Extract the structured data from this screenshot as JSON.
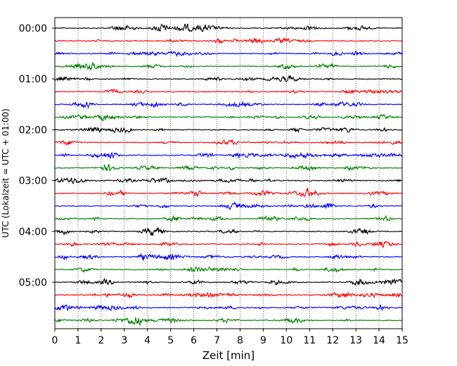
{
  "chart_data": {
    "type": "line",
    "title": "",
    "xlabel": "Zeit  [min]",
    "ylabel": "UTC (Lokalzeit = UTC + 01:00)",
    "xlim": [
      0,
      15
    ],
    "x_ticks": [
      "0",
      "1",
      "2",
      "3",
      "4",
      "5",
      "6",
      "7",
      "8",
      "9",
      "10",
      "11",
      "12",
      "13",
      "14",
      "15"
    ],
    "y_tick_labels": [
      "00:00",
      "01:00",
      "02:00",
      "03:00",
      "04:00",
      "05:00"
    ],
    "grid": "vertical dotted lines at each minute",
    "trace_interval_minutes": 15,
    "trace_start_times": [
      "00:00",
      "00:15",
      "00:30",
      "00:45",
      "01:00",
      "01:15",
      "01:30",
      "01:45",
      "02:00",
      "02:15",
      "02:30",
      "02:45",
      "03:00",
      "03:15",
      "03:30",
      "03:45",
      "04:00",
      "04:15",
      "04:30",
      "04:45",
      "05:00",
      "05:15",
      "05:30",
      "05:45"
    ],
    "trace_colors": [
      "#000000",
      "#ff0000",
      "#0000ff",
      "#008000"
    ],
    "series_description": "24 seismogram traces, each 15 minutes long, colors cycling black, red, blue, green"
  }
}
